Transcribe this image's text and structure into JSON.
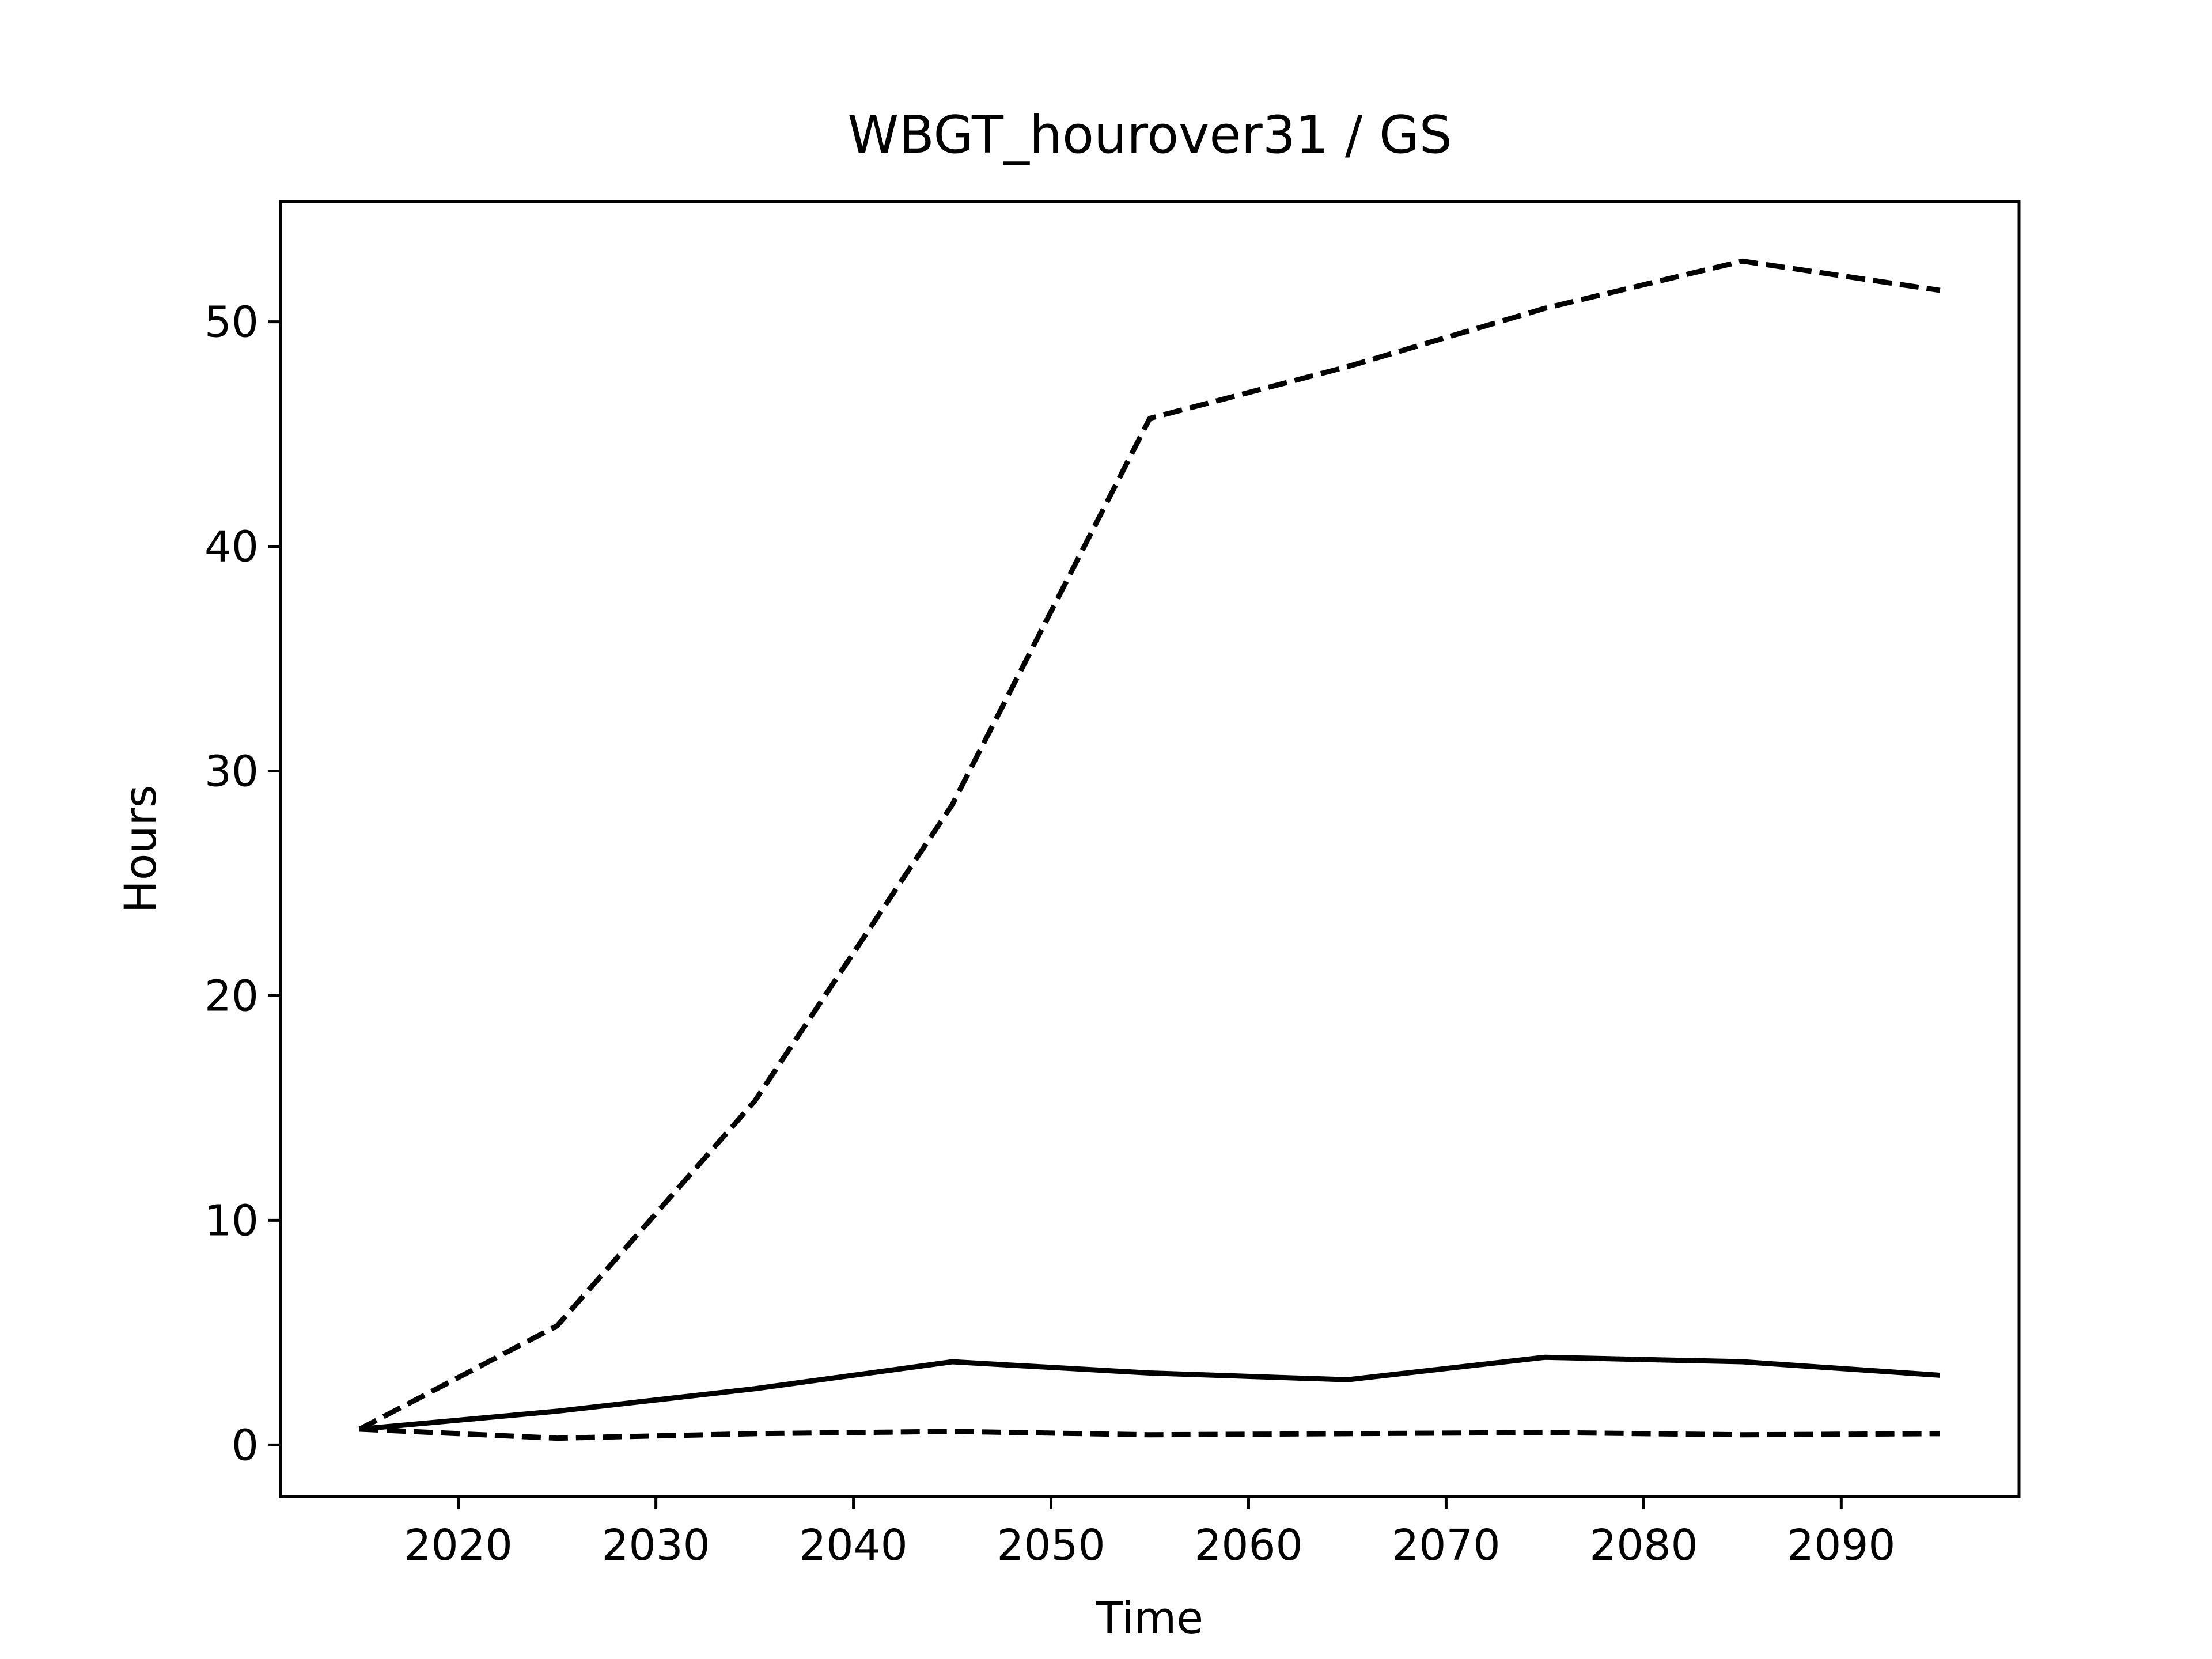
{
  "chart_data": {
    "type": "line",
    "title": "WBGT_hourover31 / GS",
    "xlabel": "Time",
    "ylabel": "Hours",
    "x": [
      2015,
      2025,
      2035,
      2045,
      2055,
      2065,
      2075,
      2085,
      2095
    ],
    "series": [
      {
        "color": "#000000",
        "linestyle": "dashed",
        "values": [
          0.7,
          5.3,
          15.3,
          28.5,
          45.7,
          48.0,
          50.6,
          52.7,
          51.4
        ]
      },
      {
        "color": "#000000",
        "linestyle": "solid",
        "values": [
          0.7,
          1.5,
          2.5,
          3.7,
          3.2,
          2.9,
          3.9,
          3.7,
          3.1
        ]
      },
      {
        "color": "#000000",
        "linestyle": "dashed",
        "values": [
          0.7,
          0.3,
          0.5,
          0.6,
          0.45,
          0.5,
          0.55,
          0.45,
          0.5
        ]
      }
    ],
    "xlim": [
      2011,
      2099
    ],
    "ylim": [
      -2.3,
      55.35
    ],
    "xticks": [
      2020,
      2030,
      2040,
      2050,
      2060,
      2070,
      2080,
      2090
    ],
    "yticks": [
      0,
      10,
      20,
      30,
      40,
      50
    ],
    "grid": false
  }
}
